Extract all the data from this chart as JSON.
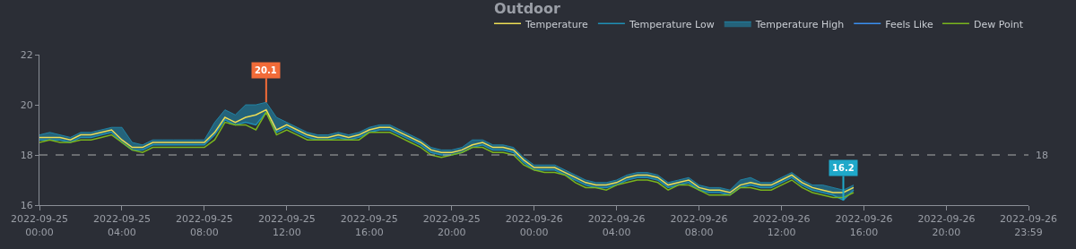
{
  "chart_data": {
    "type": "line",
    "title": "Outdoor",
    "x": [
      "2022-09-25T00:00",
      "2022-09-25T00:30",
      "2022-09-25T01:00",
      "2022-09-25T01:30",
      "2022-09-25T02:00",
      "2022-09-25T02:30",
      "2022-09-25T03:00",
      "2022-09-25T03:30",
      "2022-09-25T04:00",
      "2022-09-25T04:30",
      "2022-09-25T05:00",
      "2022-09-25T05:30",
      "2022-09-25T06:00",
      "2022-09-25T06:30",
      "2022-09-25T07:00",
      "2022-09-25T07:30",
      "2022-09-25T08:00",
      "2022-09-25T08:30",
      "2022-09-25T09:00",
      "2022-09-25T09:30",
      "2022-09-25T10:00",
      "2022-09-25T10:30",
      "2022-09-25T11:00",
      "2022-09-25T11:30",
      "2022-09-25T12:00",
      "2022-09-25T12:30",
      "2022-09-25T13:00",
      "2022-09-25T13:30",
      "2022-09-25T14:00",
      "2022-09-25T14:30",
      "2022-09-25T15:00",
      "2022-09-25T15:30",
      "2022-09-25T16:00",
      "2022-09-25T16:30",
      "2022-09-25T17:00",
      "2022-09-25T17:30",
      "2022-09-25T18:00",
      "2022-09-25T18:30",
      "2022-09-25T19:00",
      "2022-09-25T19:30",
      "2022-09-25T20:00",
      "2022-09-25T20:30",
      "2022-09-25T21:00",
      "2022-09-25T21:30",
      "2022-09-25T22:00",
      "2022-09-25T22:30",
      "2022-09-25T23:00",
      "2022-09-25T23:30",
      "2022-09-26T00:00",
      "2022-09-26T00:30",
      "2022-09-26T01:00",
      "2022-09-26T01:30",
      "2022-09-26T02:00",
      "2022-09-26T02:30",
      "2022-09-26T03:00",
      "2022-09-26T03:30",
      "2022-09-26T04:00",
      "2022-09-26T04:30",
      "2022-09-26T05:00",
      "2022-09-26T05:30",
      "2022-09-26T06:00",
      "2022-09-26T06:30",
      "2022-09-26T07:00",
      "2022-09-26T07:30",
      "2022-09-26T08:00",
      "2022-09-26T08:30",
      "2022-09-26T09:00",
      "2022-09-26T09:30",
      "2022-09-26T10:00",
      "2022-09-26T10:30",
      "2022-09-26T11:00",
      "2022-09-26T11:30",
      "2022-09-26T12:00",
      "2022-09-26T12:30",
      "2022-09-26T13:00",
      "2022-09-26T13:30",
      "2022-09-26T14:00",
      "2022-09-26T14:30",
      "2022-09-26T15:00",
      "2022-09-26T15:30"
    ],
    "series": [
      {
        "name": "Temperature",
        "color": "#eedd55",
        "values": [
          18.7,
          18.7,
          18.7,
          18.6,
          18.8,
          18.8,
          18.9,
          19.0,
          18.6,
          18.3,
          18.3,
          18.5,
          18.5,
          18.5,
          18.5,
          18.5,
          18.5,
          18.9,
          19.5,
          19.3,
          19.5,
          19.6,
          19.8,
          19.0,
          19.2,
          19.0,
          18.8,
          18.7,
          18.7,
          18.8,
          18.7,
          18.8,
          19.0,
          19.1,
          19.1,
          18.9,
          18.7,
          18.5,
          18.2,
          18.1,
          18.1,
          18.2,
          18.4,
          18.5,
          18.3,
          18.3,
          18.2,
          17.8,
          17.5,
          17.5,
          17.5,
          17.3,
          17.1,
          16.9,
          16.8,
          16.8,
          16.9,
          17.1,
          17.2,
          17.2,
          17.1,
          16.8,
          16.9,
          17.0,
          16.7,
          16.6,
          16.6,
          16.5,
          16.8,
          16.9,
          16.8,
          16.8,
          17.0,
          17.2,
          16.9,
          16.7,
          16.6,
          16.5,
          16.5,
          16.7
        ]
      },
      {
        "name": "Temperature Low",
        "color": "#1f8fb5",
        "values": [
          18.6,
          18.6,
          18.6,
          18.5,
          18.7,
          18.7,
          18.8,
          18.9,
          18.5,
          18.2,
          18.2,
          18.4,
          18.4,
          18.4,
          18.4,
          18.4,
          18.4,
          18.8,
          19.4,
          19.2,
          19.3,
          19.2,
          19.7,
          18.9,
          19.1,
          18.9,
          18.7,
          18.6,
          18.6,
          18.7,
          18.6,
          18.7,
          18.9,
          19.0,
          19.0,
          18.8,
          18.6,
          18.4,
          18.1,
          18.0,
          18.0,
          18.1,
          18.3,
          18.4,
          18.2,
          18.2,
          18.1,
          17.7,
          17.4,
          17.4,
          17.4,
          17.2,
          17.0,
          16.8,
          16.7,
          16.7,
          16.8,
          17.0,
          17.1,
          17.1,
          17.0,
          16.7,
          16.8,
          16.9,
          16.6,
          16.5,
          16.5,
          16.4,
          16.7,
          16.8,
          16.7,
          16.7,
          16.9,
          17.1,
          16.8,
          16.6,
          16.5,
          16.4,
          16.2,
          16.6
        ]
      },
      {
        "name": "Temperature High",
        "color": "#1f8fb5",
        "type": "area",
        "values": [
          18.8,
          18.9,
          18.8,
          18.7,
          18.9,
          18.9,
          19.0,
          19.1,
          19.1,
          18.5,
          18.4,
          18.6,
          18.6,
          18.6,
          18.6,
          18.6,
          18.6,
          19.3,
          19.8,
          19.6,
          20.0,
          20.0,
          20.1,
          19.5,
          19.3,
          19.1,
          18.9,
          18.8,
          18.8,
          18.9,
          18.8,
          18.9,
          19.1,
          19.2,
          19.2,
          19.0,
          18.8,
          18.6,
          18.3,
          18.2,
          18.2,
          18.3,
          18.6,
          18.6,
          18.4,
          18.4,
          18.3,
          17.9,
          17.6,
          17.6,
          17.6,
          17.4,
          17.2,
          17.0,
          16.9,
          16.9,
          17.0,
          17.2,
          17.3,
          17.3,
          17.2,
          16.9,
          17.0,
          17.1,
          16.8,
          16.7,
          16.7,
          16.6,
          17.0,
          17.1,
          16.9,
          16.9,
          17.1,
          17.3,
          17.0,
          16.8,
          16.8,
          16.7,
          16.6,
          16.8
        ]
      },
      {
        "name": "Feels Like",
        "color": "#3a8ff0",
        "values": [
          null,
          null,
          null,
          null,
          null,
          null,
          null,
          null,
          null,
          null,
          null,
          null,
          null,
          null,
          null,
          null,
          null,
          null,
          null,
          null,
          null,
          null,
          null,
          null,
          null,
          null,
          null,
          null,
          null,
          null,
          null,
          null,
          null,
          null,
          null,
          null,
          null,
          null,
          null,
          null,
          null,
          null,
          null,
          null,
          null,
          null,
          null,
          null,
          null,
          null,
          null,
          null,
          null,
          null,
          null,
          null,
          null,
          null,
          null,
          null,
          null,
          null,
          null,
          null,
          null,
          null,
          null,
          null,
          null,
          null,
          null,
          null,
          null,
          null,
          null,
          null,
          null,
          null,
          null,
          null
        ]
      },
      {
        "name": "Dew Point",
        "color": "#7ab51d",
        "values": [
          18.5,
          18.6,
          18.5,
          18.5,
          18.6,
          18.6,
          18.7,
          18.8,
          18.5,
          18.2,
          18.1,
          18.3,
          18.3,
          18.3,
          18.3,
          18.3,
          18.3,
          18.6,
          19.3,
          19.2,
          19.2,
          19.0,
          19.7,
          18.8,
          19.0,
          18.8,
          18.6,
          18.6,
          18.6,
          18.6,
          18.6,
          18.6,
          18.9,
          18.9,
          18.9,
          18.7,
          18.5,
          18.3,
          18.0,
          17.9,
          18.0,
          18.1,
          18.3,
          18.3,
          18.1,
          18.1,
          18.0,
          17.6,
          17.4,
          17.3,
          17.3,
          17.2,
          16.9,
          16.7,
          16.7,
          16.6,
          16.8,
          16.9,
          17.0,
          17.0,
          16.9,
          16.6,
          16.8,
          16.8,
          16.6,
          16.4,
          16.4,
          16.4,
          16.7,
          16.7,
          16.6,
          16.6,
          16.8,
          17.0,
          16.7,
          16.5,
          16.4,
          16.3,
          16.3,
          16.5
        ]
      }
    ],
    "xlim": [
      "2022-09-25T00:00",
      "2022-09-26T23:59"
    ],
    "xticks": [
      {
        "value": "2022-09-25T00:00",
        "label": "2022-09-25\n00:00"
      },
      {
        "value": "2022-09-25T04:00",
        "label": "2022-09-25\n04:00"
      },
      {
        "value": "2022-09-25T08:00",
        "label": "2022-09-25\n08:00"
      },
      {
        "value": "2022-09-25T12:00",
        "label": "2022-09-25\n12:00"
      },
      {
        "value": "2022-09-25T16:00",
        "label": "2022-09-25\n16:00"
      },
      {
        "value": "2022-09-25T20:00",
        "label": "2022-09-25\n20:00"
      },
      {
        "value": "2022-09-26T00:00",
        "label": "2022-09-26\n00:00"
      },
      {
        "value": "2022-09-26T04:00",
        "label": "2022-09-26\n04:00"
      },
      {
        "value": "2022-09-26T08:00",
        "label": "2022-09-26\n08:00"
      },
      {
        "value": "2022-09-26T12:00",
        "label": "2022-09-26\n12:00"
      },
      {
        "value": "2022-09-26T16:00",
        "label": "2022-09-26\n16:00"
      },
      {
        "value": "2022-09-26T20:00",
        "label": "2022-09-26\n20:00"
      },
      {
        "value": "2022-09-26T23:59",
        "label": "2022-09-26\n23:59"
      }
    ],
    "ylim": [
      16,
      22
    ],
    "yticks": [
      16,
      18,
      20,
      22
    ],
    "ref_lines": [
      {
        "axis": "y",
        "value": 18,
        "label": "18",
        "color": "#aaaaaa",
        "line_style": "dashed"
      }
    ],
    "annotations": [
      {
        "text": "20.1",
        "x": "2022-09-25T11:00",
        "y": 20.1
      },
      {
        "text": "16.2",
        "x": "2022-09-26T15:00",
        "y": 16.2
      }
    ],
    "legend": "top right",
    "grid": false,
    "marker": "none",
    "line_style": "solid"
  }
}
